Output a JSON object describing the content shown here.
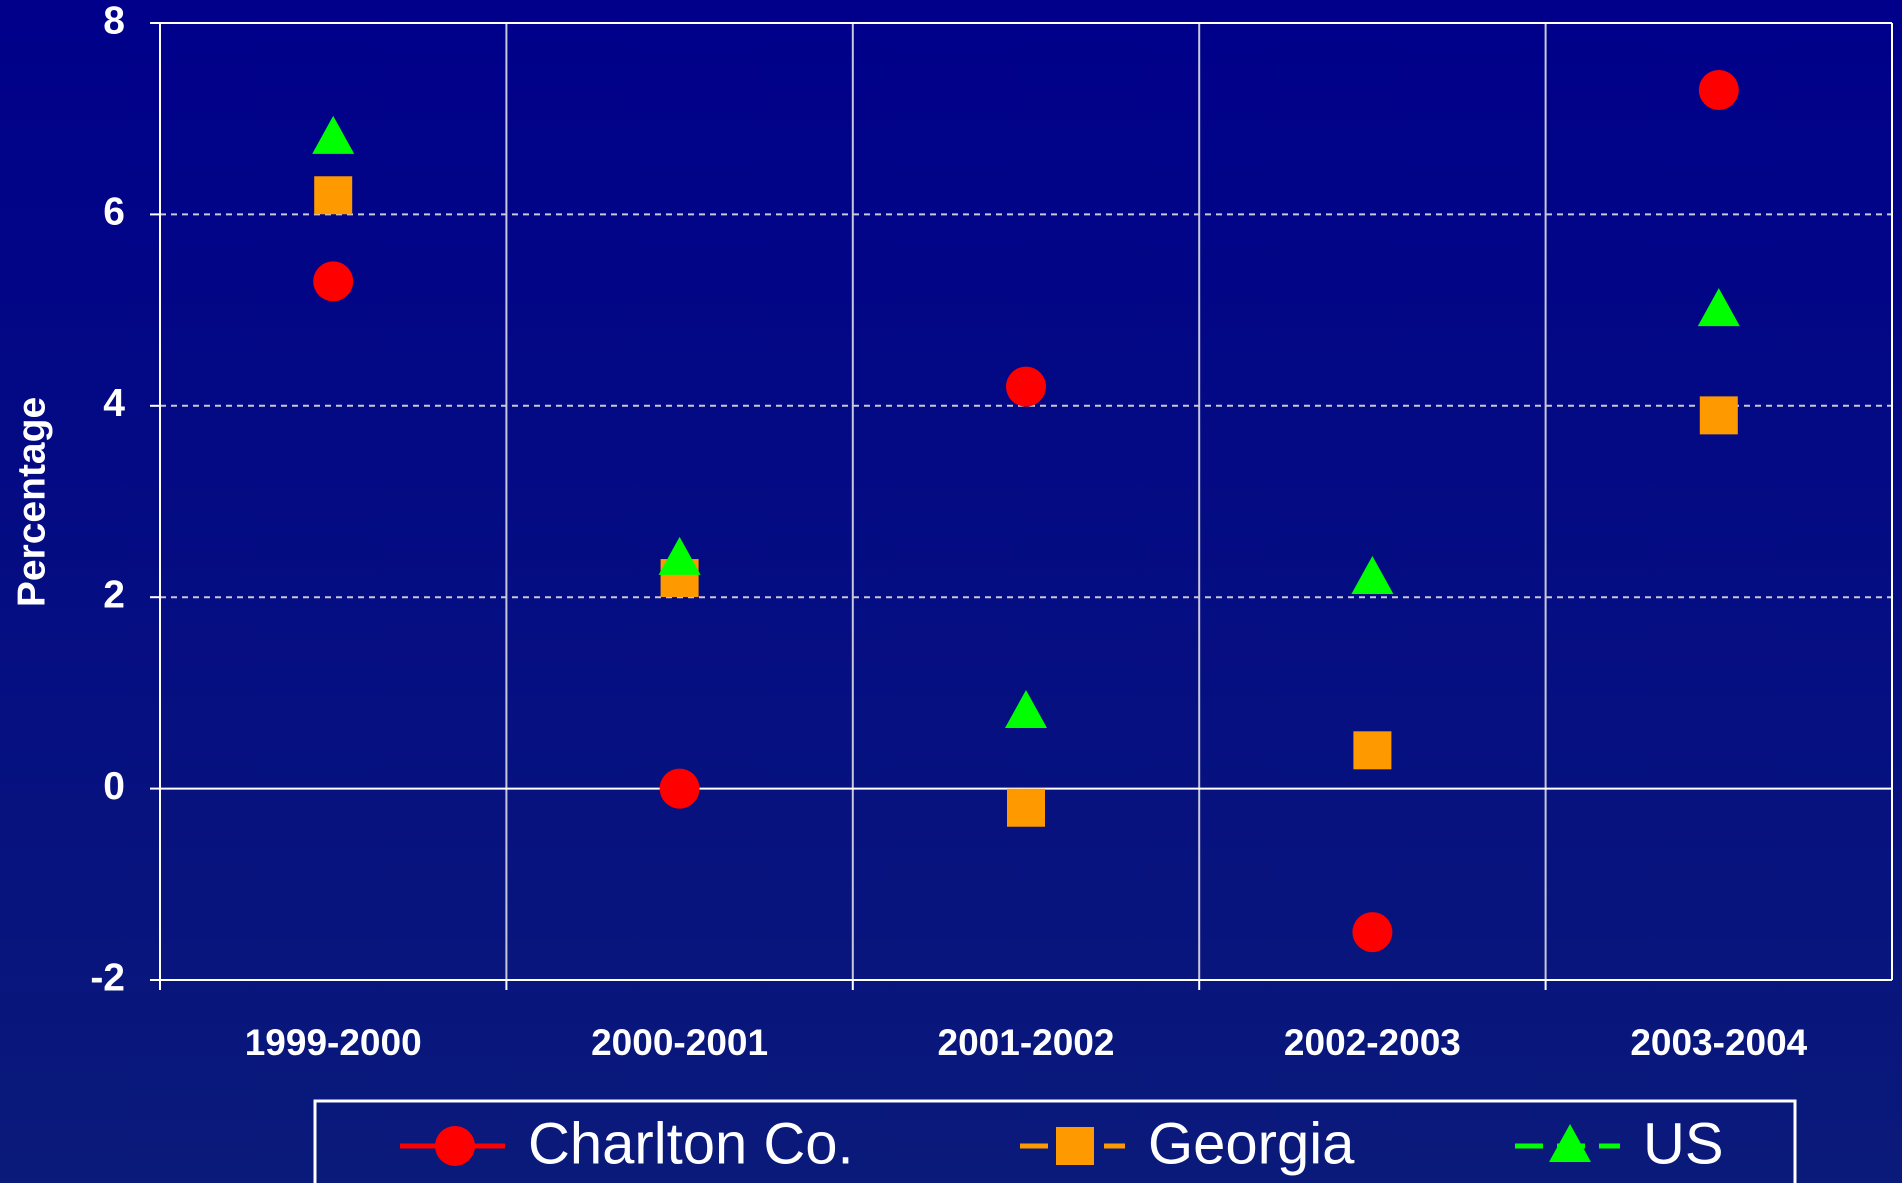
{
  "chart_data": {
    "type": "line",
    "y_label": "Percentage",
    "categories": [
      "1999-2000",
      "2000-2001",
      "2001-2002",
      "2002-2003",
      "2003-2004"
    ],
    "series": [
      {
        "name": "Charlton Co.",
        "color": "#ff0000",
        "line_style": "solid",
        "marker": "circle",
        "values": [
          5.3,
          0,
          4.2,
          -1.5,
          7.3
        ]
      },
      {
        "name": "Georgia",
        "color": "#ff9900",
        "line_style": "dashdot",
        "marker": "square",
        "values": [
          6.2,
          2.2,
          -0.2,
          0.4,
          3.9
        ]
      },
      {
        "name": "US",
        "color": "#00ff00",
        "line_style": "dashed",
        "marker": "triangle",
        "values": [
          6.8,
          2.4,
          0.8,
          2.2,
          5.0
        ]
      }
    ],
    "ylim": [
      -2,
      8
    ],
    "yticks": [
      -2,
      0,
      2,
      4,
      6,
      8
    ],
    "grid": true,
    "legend": "bottom"
  }
}
